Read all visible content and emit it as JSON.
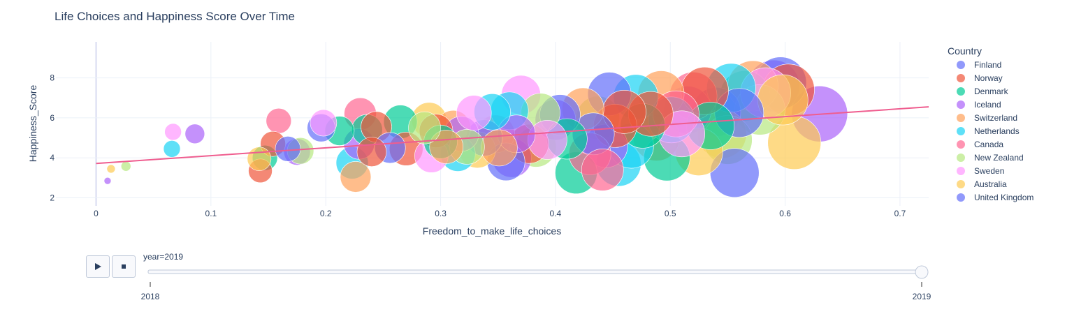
{
  "chart_data": {
    "type": "scatter",
    "title": "Life Choices and Happiness Score Over Time",
    "xlabel": "Freedom_to_make_life_choices",
    "ylabel": "Happiness_Score",
    "xlim": [
      -0.035,
      0.725
    ],
    "ylim": [
      1.6,
      9.8
    ],
    "xticks": [
      "0",
      "0.1",
      "0.2",
      "0.3",
      "0.4",
      "0.5",
      "0.6",
      "0.7"
    ],
    "yticks": [
      "2",
      "4",
      "6",
      "8"
    ],
    "grid": true,
    "legend": {
      "title": "Country",
      "position": "right"
    },
    "series": [
      {
        "name": "Finland",
        "color": "#636efa"
      },
      {
        "name": "Norway",
        "color": "#ef553b"
      },
      {
        "name": "Denmark",
        "color": "#00cc96"
      },
      {
        "name": "Iceland",
        "color": "#ab63fa"
      },
      {
        "name": "Switzerland",
        "color": "#ffa15a"
      },
      {
        "name": "Netherlands",
        "color": "#19d3f3"
      },
      {
        "name": "Canada",
        "color": "#ff6692"
      },
      {
        "name": "New Zealand",
        "color": "#b6e880"
      },
      {
        "name": "Sweden",
        "color": "#ff97ff"
      },
      {
        "name": "Australia",
        "color": "#fecb52"
      },
      {
        "name": "United Kingdom",
        "color": "#636efa"
      }
    ],
    "points": [
      {
        "x": 0.01,
        "y": 2.85,
        "s": 5,
        "c": 3
      },
      {
        "x": 0.013,
        "y": 3.45,
        "s": 6,
        "c": 9
      },
      {
        "x": 0.026,
        "y": 3.58,
        "s": 7,
        "c": 7
      },
      {
        "x": 0.067,
        "y": 5.3,
        "s": 12,
        "c": 8
      },
      {
        "x": 0.066,
        "y": 4.45,
        "s": 12,
        "c": 5
      },
      {
        "x": 0.086,
        "y": 5.2,
        "s": 14,
        "c": 3
      },
      {
        "x": 0.143,
        "y": 3.35,
        "s": 17,
        "c": 1
      },
      {
        "x": 0.142,
        "y": 3.95,
        "s": 17,
        "c": 9
      },
      {
        "x": 0.147,
        "y": 4.0,
        "s": 18,
        "c": 2
      },
      {
        "x": 0.159,
        "y": 5.85,
        "s": 18,
        "c": 6
      },
      {
        "x": 0.154,
        "y": 4.7,
        "s": 18,
        "c": 1
      },
      {
        "x": 0.167,
        "y": 4.45,
        "s": 18,
        "c": 0
      },
      {
        "x": 0.175,
        "y": 4.3,
        "s": 19,
        "c": 3
      },
      {
        "x": 0.178,
        "y": 4.35,
        "s": 19,
        "c": 7
      },
      {
        "x": 0.198,
        "y": 5.75,
        "s": 19,
        "c": 8
      },
      {
        "x": 0.196,
        "y": 5.5,
        "s": 20,
        "c": 0
      },
      {
        "x": 0.212,
        "y": 5.35,
        "s": 21,
        "c": 2
      },
      {
        "x": 0.223,
        "y": 3.75,
        "s": 23,
        "c": 5
      },
      {
        "x": 0.226,
        "y": 3.05,
        "s": 22,
        "c": 4
      },
      {
        "x": 0.229,
        "y": 4.7,
        "s": 22,
        "c": 3
      },
      {
        "x": 0.23,
        "y": 6.2,
        "s": 23,
        "c": 6
      },
      {
        "x": 0.236,
        "y": 5.4,
        "s": 22,
        "c": 2
      },
      {
        "x": 0.24,
        "y": 4.3,
        "s": 21,
        "c": 1
      },
      {
        "x": 0.244,
        "y": 5.55,
        "s": 22,
        "c": 1
      },
      {
        "x": 0.256,
        "y": 4.5,
        "s": 22,
        "c": 10
      },
      {
        "x": 0.265,
        "y": 5.8,
        "s": 24,
        "c": 2
      },
      {
        "x": 0.27,
        "y": 4.45,
        "s": 24,
        "c": 1
      },
      {
        "x": 0.286,
        "y": 5.5,
        "s": 23,
        "c": 7
      },
      {
        "x": 0.29,
        "y": 5.9,
        "s": 25,
        "c": 9
      },
      {
        "x": 0.292,
        "y": 4.1,
        "s": 24,
        "c": 8
      },
      {
        "x": 0.296,
        "y": 5.35,
        "s": 24,
        "c": 1
      },
      {
        "x": 0.3,
        "y": 4.8,
        "s": 24,
        "c": 2
      },
      {
        "x": 0.305,
        "y": 4.55,
        "s": 24,
        "c": 4
      },
      {
        "x": 0.311,
        "y": 5.5,
        "s": 25,
        "c": 4
      },
      {
        "x": 0.315,
        "y": 4.2,
        "s": 25,
        "c": 5
      },
      {
        "x": 0.318,
        "y": 5.2,
        "s": 25,
        "c": 3
      },
      {
        "x": 0.323,
        "y": 4.55,
        "s": 25,
        "c": 7
      },
      {
        "x": 0.329,
        "y": 6.25,
        "s": 25,
        "c": 8
      },
      {
        "x": 0.332,
        "y": 4.4,
        "s": 26,
        "c": 9
      },
      {
        "x": 0.338,
        "y": 5.0,
        "s": 26,
        "c": 0
      },
      {
        "x": 0.345,
        "y": 6.3,
        "s": 26,
        "c": 5
      },
      {
        "x": 0.348,
        "y": 5.2,
        "s": 27,
        "c": 6
      },
      {
        "x": 0.351,
        "y": 4.5,
        "s": 26,
        "c": 4
      },
      {
        "x": 0.357,
        "y": 3.8,
        "s": 27,
        "c": 10
      },
      {
        "x": 0.36,
        "y": 6.35,
        "s": 27,
        "c": 5
      },
      {
        "x": 0.362,
        "y": 4.0,
        "s": 28,
        "c": 3
      },
      {
        "x": 0.366,
        "y": 5.2,
        "s": 27,
        "c": 3
      },
      {
        "x": 0.37,
        "y": 7.15,
        "s": 28,
        "c": 8
      },
      {
        "x": 0.377,
        "y": 4.7,
        "s": 28,
        "c": 1
      },
      {
        "x": 0.383,
        "y": 4.55,
        "s": 29,
        "c": 7
      },
      {
        "x": 0.387,
        "y": 6.25,
        "s": 28,
        "c": 7
      },
      {
        "x": 0.393,
        "y": 4.9,
        "s": 28,
        "c": 8
      },
      {
        "x": 0.4,
        "y": 5.9,
        "s": 29,
        "c": 3
      },
      {
        "x": 0.404,
        "y": 6.15,
        "s": 29,
        "c": 0
      },
      {
        "x": 0.41,
        "y": 4.95,
        "s": 29,
        "c": 2
      },
      {
        "x": 0.418,
        "y": 3.25,
        "s": 30,
        "c": 2
      },
      {
        "x": 0.424,
        "y": 6.45,
        "s": 30,
        "c": 4
      },
      {
        "x": 0.43,
        "y": 4.2,
        "s": 30,
        "c": 6
      },
      {
        "x": 0.433,
        "y": 5.2,
        "s": 30,
        "c": 10
      },
      {
        "x": 0.437,
        "y": 6.0,
        "s": 31,
        "c": 7
      },
      {
        "x": 0.441,
        "y": 3.4,
        "s": 30,
        "c": 6
      },
      {
        "x": 0.444,
        "y": 4.6,
        "s": 31,
        "c": 3
      },
      {
        "x": 0.447,
        "y": 7.2,
        "s": 31,
        "c": 0
      },
      {
        "x": 0.452,
        "y": 5.6,
        "s": 31,
        "c": 1
      },
      {
        "x": 0.455,
        "y": 3.7,
        "s": 32,
        "c": 5
      },
      {
        "x": 0.46,
        "y": 6.3,
        "s": 31,
        "c": 1
      },
      {
        "x": 0.466,
        "y": 4.6,
        "s": 32,
        "c": 5
      },
      {
        "x": 0.47,
        "y": 7.05,
        "s": 32,
        "c": 5
      },
      {
        "x": 0.476,
        "y": 5.6,
        "s": 32,
        "c": 2
      },
      {
        "x": 0.483,
        "y": 6.2,
        "s": 32,
        "c": 1
      },
      {
        "x": 0.488,
        "y": 5.0,
        "s": 33,
        "c": 4
      },
      {
        "x": 0.492,
        "y": 7.2,
        "s": 33,
        "c": 4
      },
      {
        "x": 0.497,
        "y": 4.0,
        "s": 33,
        "c": 2
      },
      {
        "x": 0.501,
        "y": 5.9,
        "s": 33,
        "c": 5
      },
      {
        "x": 0.505,
        "y": 6.2,
        "s": 33,
        "c": 6
      },
      {
        "x": 0.51,
        "y": 5.2,
        "s": 33,
        "c": 8
      },
      {
        "x": 0.515,
        "y": 6.4,
        "s": 34,
        "c": 3
      },
      {
        "x": 0.52,
        "y": 7.1,
        "s": 34,
        "c": 6
      },
      {
        "x": 0.525,
        "y": 4.3,
        "s": 34,
        "c": 9
      },
      {
        "x": 0.53,
        "y": 7.35,
        "s": 34,
        "c": 1
      },
      {
        "x": 0.535,
        "y": 5.6,
        "s": 34,
        "c": 2
      },
      {
        "x": 0.54,
        "y": 6.3,
        "s": 35,
        "c": 0
      },
      {
        "x": 0.545,
        "y": 5.2,
        "s": 35,
        "c": 9
      },
      {
        "x": 0.55,
        "y": 4.9,
        "s": 35,
        "c": 7
      },
      {
        "x": 0.553,
        "y": 7.5,
        "s": 35,
        "c": 5
      },
      {
        "x": 0.556,
        "y": 3.25,
        "s": 35,
        "c": 0
      },
      {
        "x": 0.56,
        "y": 6.25,
        "s": 35,
        "c": 10
      },
      {
        "x": 0.565,
        "y": 7.1,
        "s": 36,
        "c": 2
      },
      {
        "x": 0.572,
        "y": 7.6,
        "s": 36,
        "c": 4
      },
      {
        "x": 0.578,
        "y": 6.4,
        "s": 36,
        "c": 7
      },
      {
        "x": 0.583,
        "y": 7.25,
        "s": 36,
        "c": 8
      },
      {
        "x": 0.59,
        "y": 7.6,
        "s": 37,
        "c": 3
      },
      {
        "x": 0.596,
        "y": 7.75,
        "s": 37,
        "c": 0
      },
      {
        "x": 0.603,
        "y": 7.4,
        "s": 37,
        "c": 1
      },
      {
        "x": 0.598,
        "y": 6.9,
        "s": 36,
        "c": 9
      },
      {
        "x": 0.608,
        "y": 4.75,
        "s": 38,
        "c": 9
      },
      {
        "x": 0.63,
        "y": 6.2,
        "s": 40,
        "c": 3
      }
    ],
    "trendline": {
      "x": [
        0,
        0.725
      ],
      "y": [
        3.72,
        6.55
      ],
      "color": "#ef5d8f"
    }
  },
  "slider": {
    "current_label": "year=2019",
    "steps": [
      "2018",
      "2019"
    ],
    "active_index": 1
  },
  "controls": {
    "play_icon": "play-icon",
    "stop_icon": "stop-icon"
  }
}
